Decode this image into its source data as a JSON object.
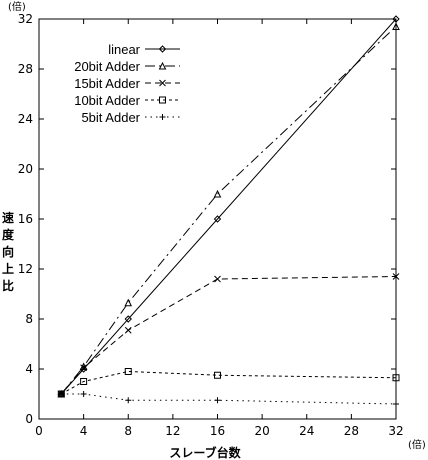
{
  "chart_data": {
    "type": "line",
    "title": "",
    "xlabel": "スレーブ台数",
    "ylabel": "速度向上比",
    "x_unit": "(倍)",
    "y_unit": "(倍)",
    "xlim": [
      0,
      32
    ],
    "ylim": [
      0,
      32
    ],
    "x_ticks": [
      0,
      4,
      8,
      12,
      16,
      20,
      24,
      28,
      32
    ],
    "y_ticks": [
      0,
      4,
      8,
      12,
      16,
      20,
      24,
      28,
      32
    ],
    "x_tick_labels": [
      "0",
      "4",
      "8",
      "12",
      "16",
      "20",
      "24",
      "28",
      "32"
    ],
    "y_tick_labels": [
      "0",
      "4",
      "8",
      "12",
      "16",
      "20",
      "24",
      "28",
      "32"
    ],
    "grid": false,
    "legend_position": "top-left",
    "series": [
      {
        "name": "linear",
        "marker": "diamond",
        "dash": "solid",
        "x": [
          2,
          4,
          8,
          16,
          32
        ],
        "y": [
          2,
          4,
          8,
          16,
          32
        ]
      },
      {
        "name": "20bit Adder",
        "marker": "triangle",
        "dash": "dashdot",
        "x": [
          2,
          4,
          8,
          16,
          32
        ],
        "y": [
          2,
          4.2,
          9.3,
          18,
          31.4
        ]
      },
      {
        "name": "15bit Adder",
        "marker": "x",
        "dash": "dashed",
        "x": [
          2,
          4,
          8,
          16,
          32
        ],
        "y": [
          2,
          4.1,
          7.1,
          11.2,
          11.4
        ]
      },
      {
        "name": "10bit Adder",
        "marker": "square",
        "dash": "shortdash",
        "x": [
          2,
          4,
          8,
          16,
          32
        ],
        "y": [
          2,
          3,
          3.8,
          3.5,
          3.3
        ]
      },
      {
        "name": "5bit Adder",
        "marker": "plus",
        "dash": "dotted",
        "x": [
          2,
          4,
          8,
          16,
          32
        ],
        "y": [
          2,
          2,
          1.5,
          1.5,
          1.2
        ]
      }
    ]
  }
}
